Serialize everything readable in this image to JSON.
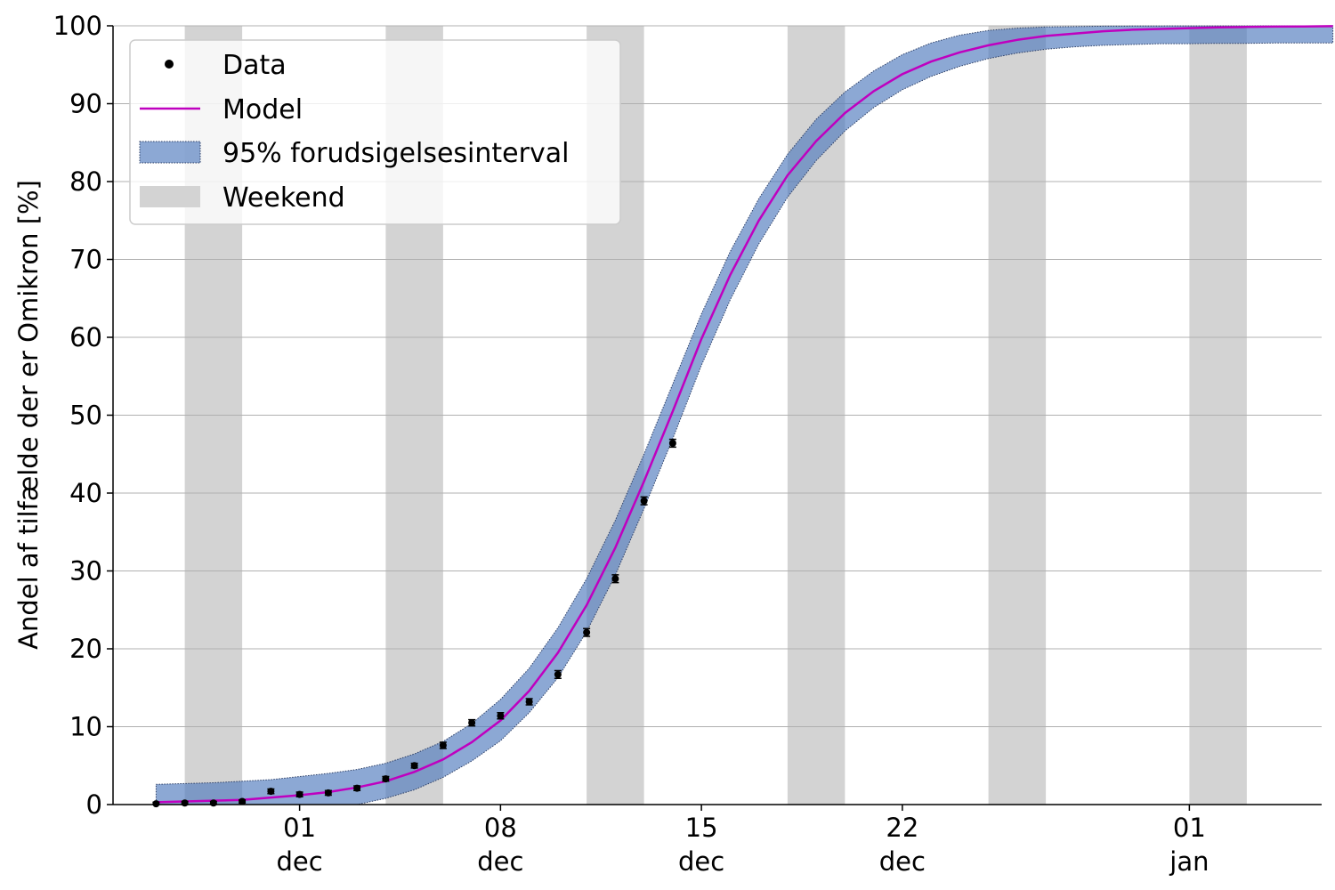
{
  "chart_data": {
    "type": "line",
    "title": "",
    "xlabel": "",
    "ylabel": "Andel af tilfælde der er Omikron [%]",
    "x_axis": {
      "type": "date",
      "range": [
        "2021-11-25",
        "2022-01-06"
      ],
      "ticks": [
        {
          "date": "2021-12-01",
          "day": "01",
          "month": "dec"
        },
        {
          "date": "2021-12-08",
          "day": "08",
          "month": "dec"
        },
        {
          "date": "2021-12-15",
          "day": "15",
          "month": "dec"
        },
        {
          "date": "2021-12-22",
          "day": "22",
          "month": "dec"
        },
        {
          "date": "2022-01-01",
          "day": "01",
          "month": "jan"
        }
      ]
    },
    "y_axis": {
      "range": [
        0,
        100
      ],
      "ticks": [
        "0",
        "10",
        "20",
        "30",
        "40",
        "50",
        "60",
        "70",
        "80",
        "90",
        "100"
      ],
      "grid": true
    },
    "legend": {
      "placement": "top-left",
      "entries": [
        "Data",
        "Model",
        "95% forudsigelsesinterval",
        "Weekend"
      ]
    },
    "weekends": [
      [
        "2021-11-27",
        "2021-11-29"
      ],
      [
        "2021-12-04",
        "2021-12-06"
      ],
      [
        "2021-12-11",
        "2021-12-13"
      ],
      [
        "2021-12-18",
        "2021-12-20"
      ],
      [
        "2021-12-25",
        "2021-12-27"
      ],
      [
        "2022-01-01",
        "2022-01-03"
      ]
    ],
    "series": [
      {
        "name": "Data",
        "type": "scatter",
        "points": [
          {
            "x": "2021-11-26",
            "y": 0.1,
            "err": 0.2
          },
          {
            "x": "2021-11-27",
            "y": 0.2,
            "err": 0.2
          },
          {
            "x": "2021-11-28",
            "y": 0.2,
            "err": 0.2
          },
          {
            "x": "2021-11-29",
            "y": 0.4,
            "err": 0.2
          },
          {
            "x": "2021-11-30",
            "y": 1.7,
            "err": 0.3
          },
          {
            "x": "2021-12-01",
            "y": 1.3,
            "err": 0.3
          },
          {
            "x": "2021-12-02",
            "y": 1.5,
            "err": 0.3
          },
          {
            "x": "2021-12-03",
            "y": 2.1,
            "err": 0.3
          },
          {
            "x": "2021-12-04",
            "y": 3.3,
            "err": 0.3
          },
          {
            "x": "2021-12-05",
            "y": 5.0,
            "err": 0.3
          },
          {
            "x": "2021-12-06",
            "y": 7.6,
            "err": 0.4
          },
          {
            "x": "2021-12-07",
            "y": 10.5,
            "err": 0.4
          },
          {
            "x": "2021-12-08",
            "y": 11.4,
            "err": 0.4
          },
          {
            "x": "2021-12-09",
            "y": 13.2,
            "err": 0.4
          },
          {
            "x": "2021-12-10",
            "y": 16.7,
            "err": 0.5
          },
          {
            "x": "2021-12-11",
            "y": 22.1,
            "err": 0.5
          },
          {
            "x": "2021-12-12",
            "y": 29.0,
            "err": 0.5
          },
          {
            "x": "2021-12-13",
            "y": 39.0,
            "err": 0.5
          },
          {
            "x": "2021-12-14",
            "y": 46.4,
            "err": 0.5
          }
        ]
      },
      {
        "name": "Model",
        "type": "line",
        "color": "#bf00bf",
        "x": [
          "2021-11-26",
          "2021-11-27",
          "2021-11-28",
          "2021-11-29",
          "2021-11-30",
          "2021-12-01",
          "2021-12-02",
          "2021-12-03",
          "2021-12-04",
          "2021-12-05",
          "2021-12-06",
          "2021-12-07",
          "2021-12-08",
          "2021-12-09",
          "2021-12-10",
          "2021-12-11",
          "2021-12-12",
          "2021-12-13",
          "2021-12-14",
          "2021-12-15",
          "2021-12-16",
          "2021-12-17",
          "2021-12-18",
          "2021-12-19",
          "2021-12-20",
          "2021-12-21",
          "2021-12-22",
          "2021-12-23",
          "2021-12-24",
          "2021-12-25",
          "2021-12-26",
          "2021-12-27",
          "2021-12-28",
          "2021-12-29",
          "2021-12-30",
          "2021-12-31",
          "2022-01-01",
          "2022-01-02",
          "2022-01-03",
          "2022-01-04",
          "2022-01-05",
          "2022-01-06"
        ],
        "values": [
          0.3,
          0.4,
          0.5,
          0.6,
          0.9,
          1.2,
          1.6,
          2.2,
          3.0,
          4.2,
          5.8,
          8.0,
          10.8,
          14.6,
          19.5,
          25.6,
          33.0,
          41.5,
          50.5,
          59.8,
          68.0,
          75.0,
          80.8,
          85.2,
          88.8,
          91.6,
          93.8,
          95.4,
          96.6,
          97.5,
          98.2,
          98.7,
          99.0,
          99.3,
          99.5,
          99.6,
          99.7,
          99.8,
          99.85,
          99.9,
          99.92,
          99.95
        ]
      },
      {
        "name": "95% forudsigelsesinterval",
        "type": "area",
        "color": "#4f79bd",
        "x": [
          "2021-11-26",
          "2021-11-27",
          "2021-11-28",
          "2021-11-29",
          "2021-11-30",
          "2021-12-01",
          "2021-12-02",
          "2021-12-03",
          "2021-12-04",
          "2021-12-05",
          "2021-12-06",
          "2021-12-07",
          "2021-12-08",
          "2021-12-09",
          "2021-12-10",
          "2021-12-11",
          "2021-12-12",
          "2021-12-13",
          "2021-12-14",
          "2021-12-15",
          "2021-12-16",
          "2021-12-17",
          "2021-12-18",
          "2021-12-19",
          "2021-12-20",
          "2021-12-21",
          "2021-12-22",
          "2021-12-23",
          "2021-12-24",
          "2021-12-25",
          "2021-12-26",
          "2021-12-27",
          "2021-12-28",
          "2021-12-29",
          "2021-12-30",
          "2021-12-31",
          "2022-01-01",
          "2022-01-02",
          "2022-01-03",
          "2022-01-04",
          "2022-01-05",
          "2022-01-06"
        ],
        "upper": [
          2.6,
          2.7,
          2.8,
          3.0,
          3.2,
          3.6,
          4.0,
          4.5,
          5.3,
          6.5,
          8.1,
          10.4,
          13.5,
          17.5,
          22.7,
          29.0,
          36.5,
          45.0,
          54.0,
          63.0,
          71.0,
          77.8,
          83.5,
          88.0,
          91.5,
          94.2,
          96.3,
          97.8,
          98.8,
          99.4,
          99.7,
          99.85,
          99.9,
          99.95,
          99.97,
          99.98,
          99.99,
          99.99,
          99.99,
          100,
          100,
          100
        ],
        "lower": [
          0,
          0,
          0,
          0,
          0,
          0,
          0,
          0,
          0.8,
          1.9,
          3.5,
          5.6,
          8.2,
          11.8,
          16.3,
          22.2,
          29.5,
          38.0,
          47.0,
          56.4,
          64.8,
          72.0,
          78.0,
          82.7,
          86.5,
          89.5,
          91.8,
          93.5,
          94.8,
          95.8,
          96.5,
          97.0,
          97.3,
          97.5,
          97.6,
          97.7,
          97.7,
          97.75,
          97.75,
          97.8,
          97.8,
          97.8
        ]
      }
    ]
  }
}
